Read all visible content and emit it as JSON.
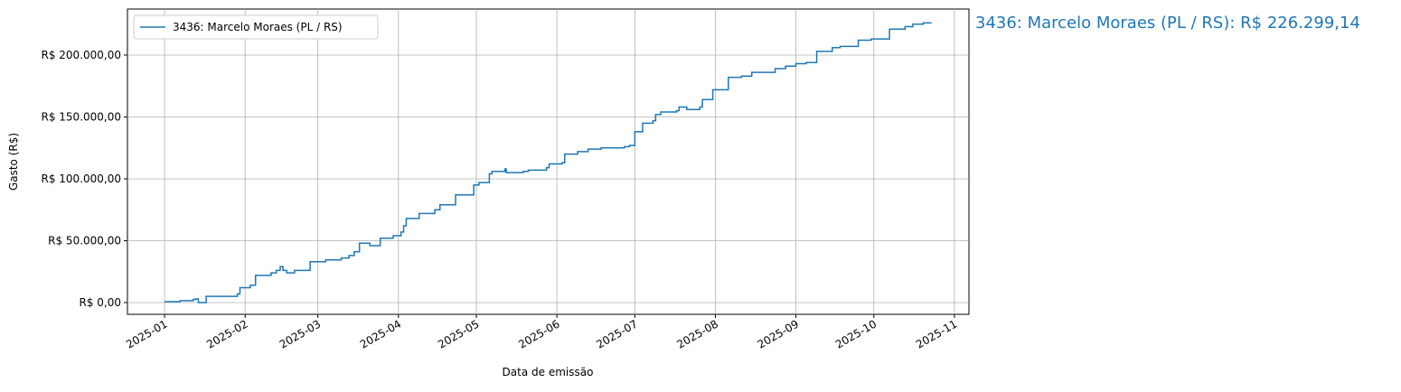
{
  "chart_data": {
    "type": "line",
    "step": "post",
    "annotation": "3436: Marcelo Moraes (PL / RS): R$ 226.299,14",
    "xlabel": "Data de emissão",
    "ylabel": "Gasto (R$)",
    "grid": true,
    "legend": "upper left",
    "xlim": [
      -14.3,
      309.6
    ],
    "xticks": [
      {
        "value": 0,
        "label": "2025-01"
      },
      {
        "value": 31,
        "label": "2025-02"
      },
      {
        "value": 59,
        "label": "2025-03"
      },
      {
        "value": 90,
        "label": "2025-04"
      },
      {
        "value": 120,
        "label": "2025-05"
      },
      {
        "value": 151,
        "label": "2025-06"
      },
      {
        "value": 181,
        "label": "2025-07"
      },
      {
        "value": 212,
        "label": "2025-08"
      },
      {
        "value": 243,
        "label": "2025-09"
      },
      {
        "value": 273,
        "label": "2025-10"
      },
      {
        "value": 304,
        "label": "2025-11"
      }
    ],
    "ylim": [
      -9500,
      237200
    ],
    "yticks": [
      {
        "value": 0,
        "label": "R$ 0,00"
      },
      {
        "value": 50000,
        "label": "R$ 50.000,00"
      },
      {
        "value": 100000,
        "label": "R$ 100.000,00"
      },
      {
        "value": 150000,
        "label": "R$ 150.000,00"
      },
      {
        "value": 200000,
        "label": "R$ 200.000,00"
      }
    ],
    "series": [
      {
        "name": "3436: Marcelo Moraes (PL / RS)",
        "color": "#1f77b4",
        "x": [
          0,
          6,
          11,
          12,
          13,
          16,
          28,
          29,
          33,
          35,
          41,
          43,
          44.5,
          45.6,
          47,
          50,
          56,
          62,
          68,
          71,
          73,
          75,
          79,
          83,
          88,
          91,
          92,
          93,
          98,
          104,
          106,
          112,
          119,
          121,
          125,
          126,
          131,
          131.5,
          138,
          140,
          147,
          148,
          153,
          154,
          159,
          163,
          168,
          177,
          179,
          181,
          184,
          188,
          189,
          191,
          197,
          198,
          201,
          206,
          207,
          211,
          217,
          222,
          226,
          235,
          239,
          243,
          247,
          251,
          257,
          260,
          267,
          272,
          279,
          285,
          288,
          292,
          295
        ],
        "values": [
          700,
          1500,
          2500,
          3000,
          0,
          5000,
          7000,
          12000,
          14000,
          22000,
          24000,
          26000,
          29000,
          26000,
          24000,
          26000,
          33000,
          34500,
          36000,
          38000,
          41000,
          48000,
          46000,
          52000,
          54000,
          57000,
          62000,
          68000,
          72000,
          75000,
          79000,
          87000,
          95000,
          97000,
          104000,
          106000,
          108000,
          105000,
          106000,
          107000,
          109000,
          112000,
          113000,
          120000,
          122000,
          124000,
          125000,
          126000,
          127000,
          138000,
          145000,
          147000,
          152000,
          154000,
          155000,
          158000,
          156000,
          158000,
          164000,
          172000,
          182000,
          183000,
          186000,
          189000,
          191000,
          193000,
          194000,
          203000,
          206000,
          207000,
          212000,
          213000,
          221000,
          223000,
          225000,
          226000,
          226299.14
        ]
      }
    ]
  }
}
